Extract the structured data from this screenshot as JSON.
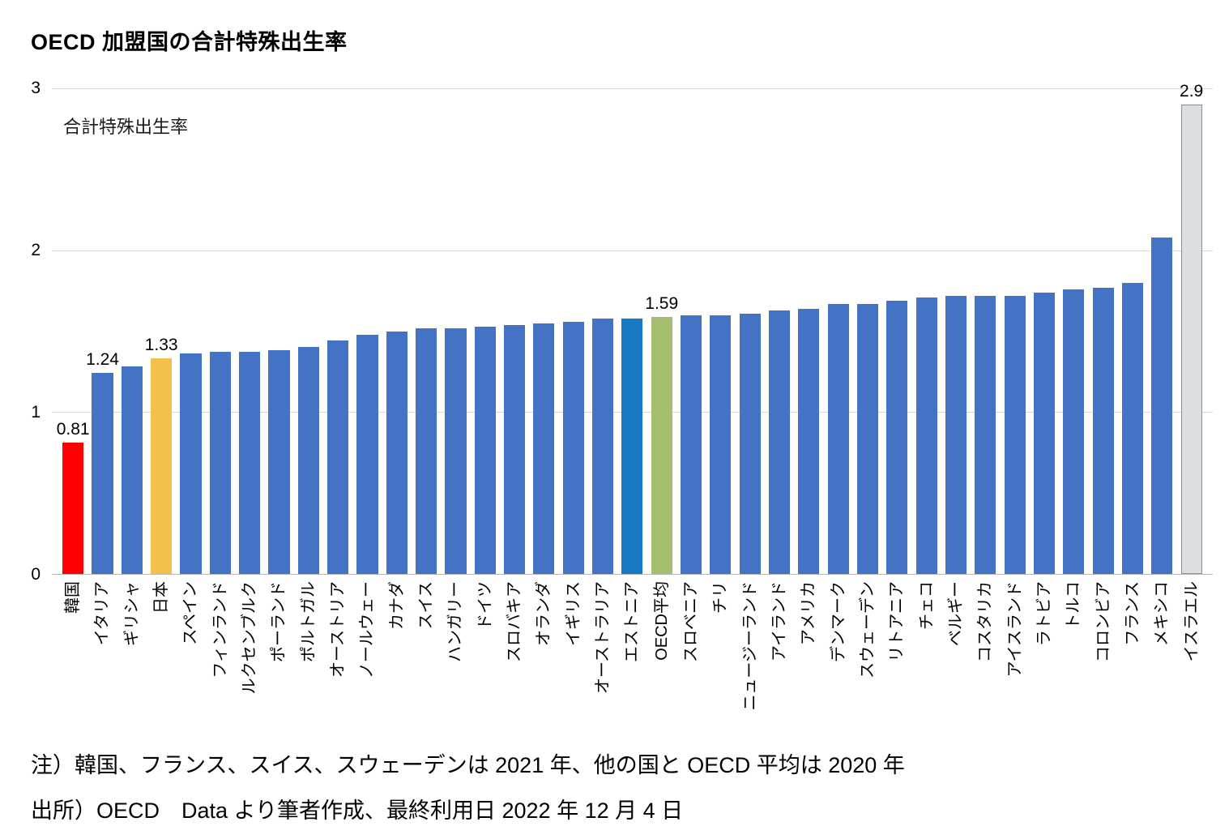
{
  "page": {
    "title": "OECD 加盟国の合計特殊出生率",
    "notes": [
      "注）韓国、フランス、スイス、スウェーデンは 2021 年、他の国と OECD 平均は 2020 年",
      "出所）OECD　Data より筆者作成、最終利用日 2022 年 12 月 4 日"
    ]
  },
  "chart_data": {
    "type": "bar",
    "title": "OECD 加盟国の合計特殊出生率",
    "ylabel": "合計特殊出生率",
    "xlabel": "",
    "ylim": [
      0,
      3
    ],
    "yticks": [
      0,
      1,
      2,
      3
    ],
    "grid": true,
    "legend": false,
    "colors": {
      "default": "#4472C4",
      "korea": "#FF0000",
      "japan": "#F2C04B",
      "estonia": "#1779C2",
      "oecd_avg": "#A4C06E",
      "israel": "#DBDEE3"
    },
    "bars": [
      {
        "label": "韓国",
        "value": 0.81,
        "color": "korea",
        "data_label": "0.81"
      },
      {
        "label": "イタリア",
        "value": 1.24,
        "data_label": "1.24"
      },
      {
        "label": "ギリシャ",
        "value": 1.28
      },
      {
        "label": "日本",
        "value": 1.33,
        "color": "japan",
        "data_label": "1.33"
      },
      {
        "label": "スペイン",
        "value": 1.36
      },
      {
        "label": "フィンランド",
        "value": 1.37
      },
      {
        "label": "ルクセンブルク",
        "value": 1.37
      },
      {
        "label": "ポーランド",
        "value": 1.38
      },
      {
        "label": "ポルトガル",
        "value": 1.4
      },
      {
        "label": "オーストリア",
        "value": 1.44
      },
      {
        "label": "ノールウェー",
        "value": 1.48
      },
      {
        "label": "カナダ",
        "value": 1.5
      },
      {
        "label": "スイス",
        "value": 1.52
      },
      {
        "label": "ハンガリー",
        "value": 1.52
      },
      {
        "label": "ドイツ",
        "value": 1.53
      },
      {
        "label": "スロバキア",
        "value": 1.54
      },
      {
        "label": "オランダ",
        "value": 1.55
      },
      {
        "label": "イギリス",
        "value": 1.56
      },
      {
        "label": "オーストラリア",
        "value": 1.58
      },
      {
        "label": "エストニア",
        "value": 1.58,
        "color": "estonia"
      },
      {
        "label": "OECD平均",
        "value": 1.59,
        "color": "oecd_avg",
        "data_label": "1.59"
      },
      {
        "label": "スロベニア",
        "value": 1.6
      },
      {
        "label": "チリ",
        "value": 1.6
      },
      {
        "label": "ニュージーランド",
        "value": 1.61
      },
      {
        "label": "アイランド",
        "value": 1.63
      },
      {
        "label": "アメリカ",
        "value": 1.64
      },
      {
        "label": "デンマーク",
        "value": 1.67
      },
      {
        "label": "スウェーデン",
        "value": 1.67
      },
      {
        "label": "リトアニア",
        "value": 1.69
      },
      {
        "label": "チェコ",
        "value": 1.71
      },
      {
        "label": "ベルギー",
        "value": 1.72
      },
      {
        "label": "コスタリカ",
        "value": 1.72
      },
      {
        "label": "アイスランド",
        "value": 1.72
      },
      {
        "label": "ラトビア",
        "value": 1.74
      },
      {
        "label": "トルコ",
        "value": 1.76
      },
      {
        "label": "コロンビア",
        "value": 1.77
      },
      {
        "label": "フランス",
        "value": 1.8
      },
      {
        "label": "メキシコ",
        "value": 2.08
      },
      {
        "label": "イスラエル",
        "value": 2.9,
        "color": "israel",
        "data_label": "2.9"
      }
    ]
  }
}
